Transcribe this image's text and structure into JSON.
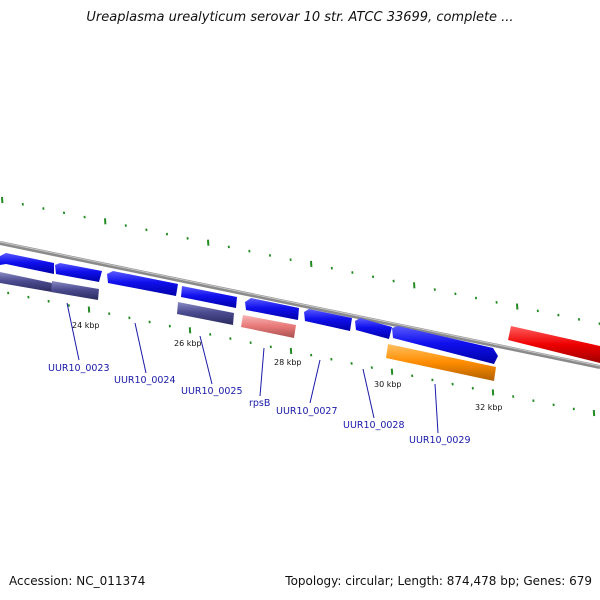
{
  "title": "Ureaplasma urealyticum serovar 10 str. ATCC 33699, complete ...",
  "footer": {
    "accession_text": "Accession: NC_011374",
    "summary_text": "Topology: circular; Length: 874,478 bp; Genes: 679"
  },
  "colors": {
    "backbone": "#8c8c8c",
    "cds_forward": "#1414e6",
    "cds_reverse": "#4a4a8e",
    "rna": "#e87c7c",
    "highlight": "#ff8c00",
    "other": "#ee1111",
    "tick": "#228b22",
    "label": "#1a1aa8"
  },
  "scale_labels": [
    "24 kbp",
    "26 kbp",
    "28 kbp",
    "30 kbp",
    "32 kbp"
  ],
  "gene_labels": [
    "UUR10_0023",
    "UUR10_0024",
    "UUR10_0025",
    "rpsB",
    "UUR10_0027",
    "UUR10_0028",
    "UUR10_0029"
  ]
}
